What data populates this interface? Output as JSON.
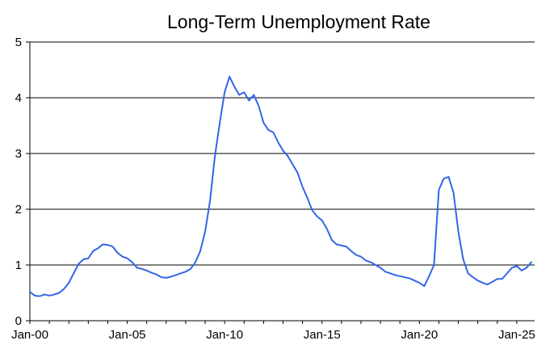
{
  "chart_data": {
    "type": "line",
    "title": "Long-Term Unemployment Rate",
    "xlabel": "",
    "ylabel": "",
    "x_range": [
      "2000-01",
      "2025-12"
    ],
    "ylim": [
      0,
      5
    ],
    "y_ticks": [
      0,
      1,
      2,
      3,
      4,
      5
    ],
    "x_ticks": [
      {
        "date": "2000-01",
        "label": "Jan-00"
      },
      {
        "date": "2005-01",
        "label": "Jan-05"
      },
      {
        "date": "2010-01",
        "label": "Jan-10"
      },
      {
        "date": "2015-01",
        "label": "Jan-15"
      },
      {
        "date": "2020-01",
        "label": "Jan-20"
      },
      {
        "date": "2025-01",
        "label": "Jan-25"
      }
    ],
    "grid": "horizontal",
    "legend": "none",
    "series": [
      {
        "color": "#3366e6",
        "points": [
          [
            "2000-01",
            0.52
          ],
          [
            "2000-04",
            0.45
          ],
          [
            "2000-07",
            0.44
          ],
          [
            "2000-10",
            0.47
          ],
          [
            "2001-01",
            0.45
          ],
          [
            "2001-04",
            0.47
          ],
          [
            "2001-07",
            0.5
          ],
          [
            "2001-10",
            0.57
          ],
          [
            "2002-01",
            0.68
          ],
          [
            "2002-04",
            0.85
          ],
          [
            "2002-07",
            1.02
          ],
          [
            "2002-10",
            1.1
          ],
          [
            "2003-01",
            1.12
          ],
          [
            "2003-04",
            1.25
          ],
          [
            "2003-07",
            1.3
          ],
          [
            "2003-10",
            1.37
          ],
          [
            "2004-01",
            1.36
          ],
          [
            "2004-04",
            1.33
          ],
          [
            "2004-07",
            1.22
          ],
          [
            "2004-10",
            1.15
          ],
          [
            "2005-01",
            1.12
          ],
          [
            "2005-04",
            1.05
          ],
          [
            "2005-07",
            0.95
          ],
          [
            "2005-10",
            0.93
          ],
          [
            "2006-01",
            0.9
          ],
          [
            "2006-04",
            0.86
          ],
          [
            "2006-07",
            0.83
          ],
          [
            "2006-10",
            0.78
          ],
          [
            "2007-01",
            0.77
          ],
          [
            "2007-04",
            0.79
          ],
          [
            "2007-07",
            0.82
          ],
          [
            "2007-10",
            0.85
          ],
          [
            "2008-01",
            0.88
          ],
          [
            "2008-04",
            0.93
          ],
          [
            "2008-07",
            1.05
          ],
          [
            "2008-10",
            1.25
          ],
          [
            "2009-01",
            1.6
          ],
          [
            "2009-04",
            2.15
          ],
          [
            "2009-07",
            2.95
          ],
          [
            "2009-10",
            3.55
          ],
          [
            "2010-01",
            4.1
          ],
          [
            "2010-04",
            4.38
          ],
          [
            "2010-07",
            4.2
          ],
          [
            "2010-10",
            4.05
          ],
          [
            "2011-01",
            4.1
          ],
          [
            "2011-04",
            3.95
          ],
          [
            "2011-07",
            4.05
          ],
          [
            "2011-10",
            3.85
          ],
          [
            "2012-01",
            3.55
          ],
          [
            "2012-04",
            3.42
          ],
          [
            "2012-07",
            3.38
          ],
          [
            "2012-10",
            3.2
          ],
          [
            "2013-01",
            3.05
          ],
          [
            "2013-04",
            2.95
          ],
          [
            "2013-07",
            2.8
          ],
          [
            "2013-10",
            2.65
          ],
          [
            "2014-01",
            2.4
          ],
          [
            "2014-04",
            2.2
          ],
          [
            "2014-07",
            1.98
          ],
          [
            "2014-10",
            1.87
          ],
          [
            "2015-01",
            1.8
          ],
          [
            "2015-04",
            1.65
          ],
          [
            "2015-07",
            1.45
          ],
          [
            "2015-10",
            1.37
          ],
          [
            "2016-01",
            1.35
          ],
          [
            "2016-04",
            1.33
          ],
          [
            "2016-07",
            1.25
          ],
          [
            "2016-10",
            1.18
          ],
          [
            "2017-01",
            1.15
          ],
          [
            "2017-04",
            1.08
          ],
          [
            "2017-07",
            1.05
          ],
          [
            "2017-10",
            1.0
          ],
          [
            "2018-01",
            0.95
          ],
          [
            "2018-04",
            0.88
          ],
          [
            "2018-07",
            0.85
          ],
          [
            "2018-10",
            0.82
          ],
          [
            "2019-01",
            0.8
          ],
          [
            "2019-04",
            0.78
          ],
          [
            "2019-07",
            0.76
          ],
          [
            "2019-10",
            0.72
          ],
          [
            "2020-01",
            0.68
          ],
          [
            "2020-04",
            0.62
          ],
          [
            "2020-07",
            0.8
          ],
          [
            "2020-10",
            1.0
          ],
          [
            "2021-01",
            2.35
          ],
          [
            "2021-04",
            2.55
          ],
          [
            "2021-07",
            2.58
          ],
          [
            "2021-10",
            2.3
          ],
          [
            "2022-01",
            1.6
          ],
          [
            "2022-04",
            1.1
          ],
          [
            "2022-07",
            0.85
          ],
          [
            "2022-10",
            0.78
          ],
          [
            "2023-01",
            0.72
          ],
          [
            "2023-04",
            0.68
          ],
          [
            "2023-07",
            0.65
          ],
          [
            "2023-10",
            0.7
          ],
          [
            "2024-01",
            0.75
          ],
          [
            "2024-04",
            0.75
          ],
          [
            "2024-07",
            0.85
          ],
          [
            "2024-10",
            0.95
          ],
          [
            "2025-01",
            0.98
          ],
          [
            "2025-04",
            0.9
          ],
          [
            "2025-07",
            0.95
          ],
          [
            "2025-10",
            1.05
          ]
        ]
      }
    ]
  }
}
